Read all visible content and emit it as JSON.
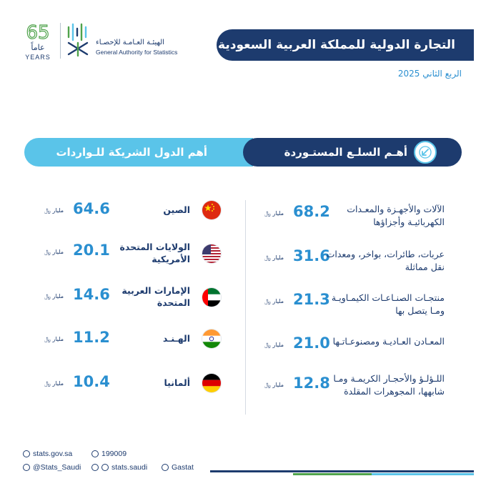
{
  "header": {
    "title": "التجارة الدولية للمملكة العربية السعودية",
    "subtitle": "الربع الثاني 2025",
    "logo_years_number": "65",
    "logo_years_ar": "عاماً",
    "logo_years_en": "YEARS",
    "gastat_name_ar": "الهيئـة العـامـة للإحصـاء",
    "gastat_name_en": "General Authority for Statistics"
  },
  "sections": {
    "imports_title": "أهـم السلـع المستـوردة",
    "partners_title": "أهم الدول الشريكة للـواردات"
  },
  "unit_label": "مليار ﷼",
  "commodities": [
    {
      "label": "الآلات والأجهـزة والمعـدات الكهربائيـة وأجزاؤها",
      "value": "68.2"
    },
    {
      "label": "عربات، طائرات، بواخر، ومعدات نقل مماثلة",
      "value": "31.6"
    },
    {
      "label": "منتجـات الصنـاعـات الكيمـاويـة ومـا يتصل بها",
      "value": "21.3"
    },
    {
      "label": "المعـادن العـاديـة ومصنوعـاتـها",
      "value": "21.0"
    },
    {
      "label": "اللـؤلـؤ والأحجـار الكريمـة ومـا شابهها، المجوهرات المقلدة",
      "value": "12.8"
    }
  ],
  "countries": [
    {
      "label": "الصين",
      "value": "64.6",
      "flag": "china-flag"
    },
    {
      "label": "الولايات المتحدة الأمريكية",
      "value": "20.1",
      "flag": "usa-flag"
    },
    {
      "label": "الإمارات العربية المتحدة",
      "value": "14.6",
      "flag": "uae-flag"
    },
    {
      "label": "الهـنـد",
      "value": "11.2",
      "flag": "india-flag"
    },
    {
      "label": "ألمانيا",
      "value": "10.4",
      "flag": "germany-flag"
    }
  ],
  "footer": {
    "website": "stats.gov.sa",
    "phone": "199009",
    "x_handle": "@Stats_Saudi",
    "social_handle": "stats.saudi",
    "linkedin": "Gastat"
  },
  "colors": {
    "navy": "#1d3b6e",
    "light_blue": "#5ac4e9",
    "value_blue": "#2a8fd0",
    "green": "#4fa34b"
  }
}
